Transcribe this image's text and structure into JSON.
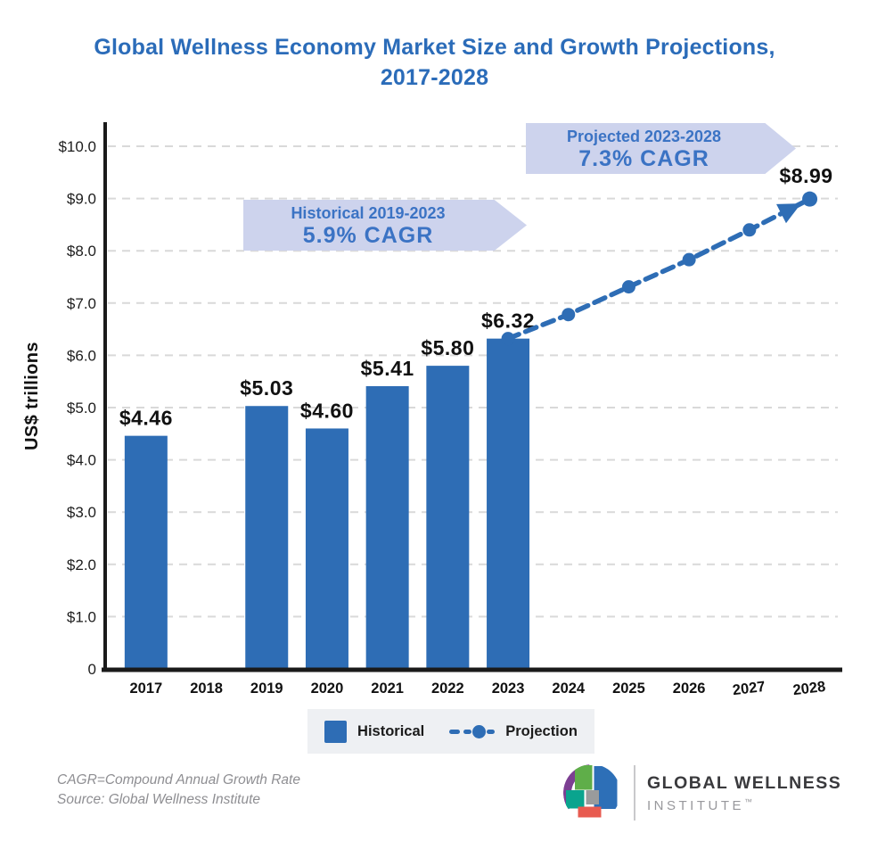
{
  "title": {
    "line1": "Global Wellness Economy Market Size and Growth Projections,",
    "line2": "2017-2028"
  },
  "banners": {
    "historical": {
      "label": "Historical 2019-2023",
      "cagr": "5.9% CAGR"
    },
    "projected": {
      "label": "Projected 2023-2028",
      "cagr": "7.3% CAGR"
    }
  },
  "legend": {
    "historical": "Historical",
    "projection": "Projection"
  },
  "footnotes": [
    "CAGR=Compound Annual Growth Rate",
    "Source: Global Wellness Institute"
  ],
  "logo": {
    "name": "GLOBAL WELLNESS",
    "subname": "INSTITUTE",
    "tm": "™"
  },
  "colors": {
    "bar": "#2e6db5",
    "title": "#2b6cb9",
    "banner_bg": "#cdd3ed",
    "banner_text": "#3b73c4",
    "grid": "#d9d9d9",
    "legend_bg": "#eef0f3",
    "axis": "#1a1a1a",
    "footnote": "#8e8e92",
    "logo_text_dark": "#3a3a3d",
    "logo_text_light": "#98989c",
    "divider": "#c9c9cb",
    "logo_purple": "#7c3f92",
    "logo_green": "#5fae49",
    "logo_blue": "#2d6fb7",
    "logo_teal": "#0aa48e",
    "logo_gray": "#999b9c",
    "logo_red": "#e85b50"
  },
  "chart_data": {
    "type": "bar",
    "title": "Global Wellness Economy Market Size and Growth Projections, 2017-2028",
    "xlabel": "",
    "ylabel": "US$ trillions",
    "ylim": [
      0,
      10
    ],
    "grid": "dashed-horizontal",
    "legend_position": "bottom",
    "yticks": [
      {
        "value": 0,
        "label": "0"
      },
      {
        "value": 1,
        "label": "$1.0"
      },
      {
        "value": 2,
        "label": "$2.0"
      },
      {
        "value": 3,
        "label": "$3.0"
      },
      {
        "value": 4,
        "label": "$4.0"
      },
      {
        "value": 5,
        "label": "$5.0"
      },
      {
        "value": 6,
        "label": "$6.0"
      },
      {
        "value": 7,
        "label": "$7.0"
      },
      {
        "value": 8,
        "label": "$8.0"
      },
      {
        "value": 9,
        "label": "$9.0"
      },
      {
        "value": 10,
        "label": "$10.0"
      }
    ],
    "categories": [
      "2017",
      "2018",
      "2019",
      "2020",
      "2021",
      "2022",
      "2023",
      "2024",
      "2025",
      "2026",
      "2027",
      "2028"
    ],
    "bars": {
      "name": "Historical",
      "points": [
        {
          "year": "2017",
          "value": 4.46,
          "label": "$4.46"
        },
        {
          "year": "2019",
          "value": 5.03,
          "label": "$5.03"
        },
        {
          "year": "2020",
          "value": 4.6,
          "label": "$4.60"
        },
        {
          "year": "2021",
          "value": 5.41,
          "label": "$5.41"
        },
        {
          "year": "2022",
          "value": 5.8,
          "label": "$5.80"
        },
        {
          "year": "2023",
          "value": 6.32,
          "label": "$6.32"
        }
      ]
    },
    "projection": {
      "name": "Projection",
      "style": "dashed-line-with-dots-and-arrow",
      "points": [
        {
          "year": "2023",
          "value": 6.32
        },
        {
          "year": "2024",
          "value": 6.78
        },
        {
          "year": "2025",
          "value": 7.31
        },
        {
          "year": "2026",
          "value": 7.83
        },
        {
          "year": "2027",
          "value": 8.4
        },
        {
          "year": "2028",
          "value": 8.99
        }
      ],
      "end_label": "$8.99"
    }
  }
}
